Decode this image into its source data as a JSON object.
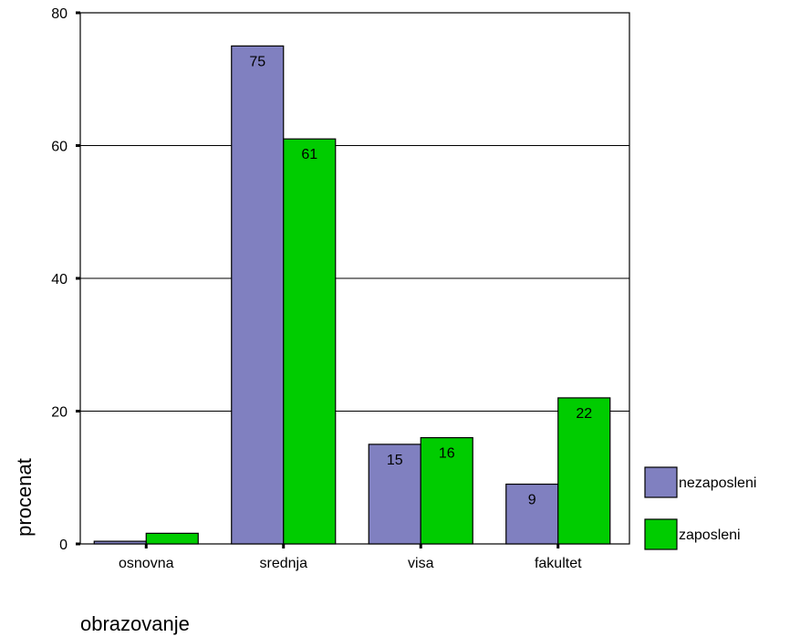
{
  "chart_data": {
    "type": "bar",
    "title": "",
    "xlabel": "obrazovanje",
    "ylabel": "procenat",
    "categories": [
      "osnovna",
      "srednja",
      "visa",
      "fakultet"
    ],
    "series": [
      {
        "name": "nezaposleni",
        "color": "#8080c0",
        "values": [
          0.4,
          75,
          15,
          9
        ],
        "labels": [
          "",
          "75",
          "15",
          "9"
        ]
      },
      {
        "name": "zaposleni",
        "color": "#00cc00",
        "values": [
          1.6,
          61,
          16,
          22
        ],
        "labels": [
          "",
          "61",
          "16",
          "22"
        ]
      }
    ],
    "ylim": [
      0,
      80
    ],
    "yticks": [
      "0",
      "20",
      "40",
      "60",
      "80"
    ],
    "grid": true,
    "legend_position": "right"
  }
}
